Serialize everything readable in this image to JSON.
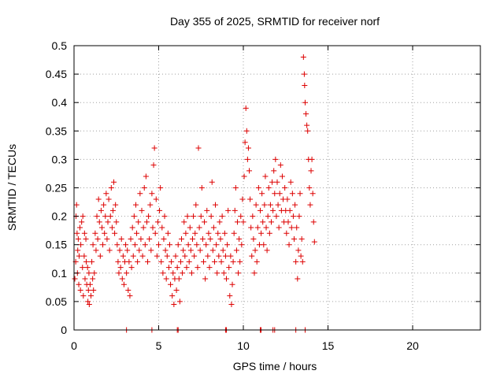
{
  "chart_data": {
    "type": "scatter",
    "title": "Day 355 of 2025, SRMTID for receiver norf",
    "xlabel": "GPS time / hours",
    "ylabel": "SRMTID / TECUs",
    "xlim": [
      0,
      24
    ],
    "ylim": [
      0,
      0.5
    ],
    "xticks": [
      0,
      5,
      10,
      15,
      20
    ],
    "xtick_labels": [
      "0",
      "5",
      "10",
      "15",
      "20"
    ],
    "yticks": [
      0,
      0.05,
      0.1,
      0.15,
      0.2,
      0.25,
      0.3,
      0.35,
      0.4,
      0.45,
      0.5
    ],
    "ytick_labels": [
      "0",
      "0.05",
      "0.1",
      "0.15",
      "0.2",
      "0.25",
      "0.3",
      "0.35",
      "0.4",
      "0.45",
      "0.5"
    ],
    "grid": true,
    "marker": "plus",
    "color": "#dd0000",
    "series": [
      {
        "points": [
          [
            0.05,
            0.09
          ],
          [
            0.1,
            0.12
          ],
          [
            0.12,
            0.2
          ],
          [
            0.15,
            0.22
          ],
          [
            0.18,
            0.17
          ],
          [
            0.2,
            0.1
          ],
          [
            0.22,
            0.14
          ],
          [
            0.25,
            0.16
          ],
          [
            0.28,
            0.08
          ],
          [
            0.3,
            0.13
          ],
          [
            0.35,
            0.18
          ],
          [
            0.38,
            0.07
          ],
          [
            0.4,
            0.15
          ],
          [
            0.45,
            0.19
          ],
          [
            0.5,
            0.11
          ],
          [
            0.52,
            0.2
          ],
          [
            0.55,
            0.06
          ],
          [
            0.6,
            0.13
          ],
          [
            0.62,
            0.17
          ],
          [
            0.65,
            0.09
          ],
          [
            0.7,
            0.16
          ],
          [
            0.72,
            0.12
          ],
          [
            0.75,
            0.08
          ],
          [
            0.8,
            0.11
          ],
          [
            0.82,
            0.05
          ],
          [
            0.85,
            0.07
          ],
          [
            0.88,
            0.1
          ],
          [
            0.9,
            0.045
          ],
          [
            0.95,
            0.08
          ],
          [
            1.0,
            0.06
          ],
          [
            1.05,
            0.12
          ],
          [
            1.1,
            0.09
          ],
          [
            1.12,
            0.15
          ],
          [
            1.15,
            0.07
          ],
          [
            1.2,
            0.1
          ],
          [
            1.25,
            0.17
          ],
          [
            1.3,
            0.14
          ],
          [
            1.35,
            0.2
          ],
          [
            1.4,
            0.16
          ],
          [
            1.45,
            0.23
          ],
          [
            1.5,
            0.19
          ],
          [
            1.55,
            0.13
          ],
          [
            1.6,
            0.21
          ],
          [
            1.65,
            0.18
          ],
          [
            1.7,
            0.15
          ],
          [
            1.75,
            0.22
          ],
          [
            1.8,
            0.17
          ],
          [
            1.85,
            0.2
          ],
          [
            1.9,
            0.24
          ],
          [
            1.95,
            0.16
          ],
          [
            2.0,
            0.19
          ],
          [
            2.05,
            0.23
          ],
          [
            2.1,
            0.14
          ],
          [
            2.15,
            0.2
          ],
          [
            2.2,
            0.25
          ],
          [
            2.25,
            0.18
          ],
          [
            2.3,
            0.21
          ],
          [
            2.35,
            0.26
          ],
          [
            2.4,
            0.17
          ],
          [
            2.45,
            0.22
          ],
          [
            2.5,
            0.19
          ],
          [
            2.55,
            0.15
          ],
          [
            2.6,
            0.12
          ],
          [
            2.65,
            0.1
          ],
          [
            2.7,
            0.14
          ],
          [
            2.75,
            0.11
          ],
          [
            2.8,
            0.16
          ],
          [
            2.85,
            0.09
          ],
          [
            2.9,
            0.13
          ],
          [
            2.95,
            0.08
          ],
          [
            3.0,
            0.12
          ],
          [
            3.05,
            0.15
          ],
          [
            3.1,
            0.1
          ],
          [
            3.15,
            0.14
          ],
          [
            3.2,
            0.07
          ],
          [
            3.25,
            0.12
          ],
          [
            3.3,
            0.06
          ],
          [
            3.35,
            0.16
          ],
          [
            3.4,
            0.11
          ],
          [
            3.45,
            0.18
          ],
          [
            3.5,
            0.13
          ],
          [
            3.55,
            0.2
          ],
          [
            3.6,
            0.15
          ],
          [
            3.65,
            0.22
          ],
          [
            3.7,
            0.17
          ],
          [
            3.75,
            0.12
          ],
          [
            3.8,
            0.19
          ],
          [
            3.85,
            0.14
          ],
          [
            3.9,
            0.24
          ],
          [
            3.95,
            0.16
          ],
          [
            4.0,
            0.21
          ],
          [
            4.05,
            0.13
          ],
          [
            4.1,
            0.18
          ],
          [
            4.15,
            0.25
          ],
          [
            4.2,
            0.15
          ],
          [
            4.25,
            0.27
          ],
          [
            4.3,
            0.19
          ],
          [
            4.35,
            0.12
          ],
          [
            4.4,
            0.2
          ],
          [
            4.45,
            0.16
          ],
          [
            4.5,
            0.22
          ],
          [
            4.55,
            0.14
          ],
          [
            4.6,
            0.24
          ],
          [
            4.65,
            0.18
          ],
          [
            4.7,
            0.29
          ],
          [
            4.75,
            0.32
          ],
          [
            4.8,
            0.17
          ],
          [
            4.85,
            0.23
          ],
          [
            4.9,
            0.13
          ],
          [
            4.95,
            0.19
          ],
          [
            5.0,
            0.15
          ],
          [
            5.05,
            0.21
          ],
          [
            5.1,
            0.25
          ],
          [
            5.15,
            0.12
          ],
          [
            5.2,
            0.18
          ],
          [
            5.25,
            0.1
          ],
          [
            5.3,
            0.16
          ],
          [
            5.35,
            0.2
          ],
          [
            5.4,
            0.14
          ],
          [
            5.45,
            0.09
          ],
          [
            5.5,
            0.13
          ],
          [
            5.55,
            0.17
          ],
          [
            5.6,
            0.11
          ],
          [
            5.65,
            0.15
          ],
          [
            5.7,
            0.08
          ],
          [
            5.75,
            0.12
          ],
          [
            5.8,
            0.06
          ],
          [
            5.85,
            0.1
          ],
          [
            5.9,
            0.045
          ],
          [
            5.95,
            0.09
          ],
          [
            6.0,
            0.13
          ],
          [
            6.05,
            0.07
          ],
          [
            6.1,
            0.11
          ],
          [
            6.15,
            0.15
          ],
          [
            6.2,
            0.09
          ],
          [
            6.25,
            0.05
          ],
          [
            6.3,
            0.12
          ],
          [
            6.35,
            0.16
          ],
          [
            6.4,
            0.1
          ],
          [
            6.45,
            0.14
          ],
          [
            6.5,
            0.19
          ],
          [
            6.55,
            0.13
          ],
          [
            6.6,
            0.17
          ],
          [
            6.65,
            0.11
          ],
          [
            6.7,
            0.2
          ],
          [
            6.75,
            0.15
          ],
          [
            6.8,
            0.12
          ],
          [
            6.85,
            0.18
          ],
          [
            6.9,
            0.14
          ],
          [
            6.95,
            0.1
          ],
          [
            7.0,
            0.16
          ],
          [
            7.05,
            0.2
          ],
          [
            7.1,
            0.13
          ],
          [
            7.15,
            0.17
          ],
          [
            7.2,
            0.22
          ],
          [
            7.25,
            0.15
          ],
          [
            7.3,
            0.11
          ],
          [
            7.35,
            0.32
          ],
          [
            7.4,
            0.18
          ],
          [
            7.45,
            0.14
          ],
          [
            7.5,
            0.2
          ],
          [
            7.55,
            0.25
          ],
          [
            7.6,
            0.16
          ],
          [
            7.65,
            0.12
          ],
          [
            7.7,
            0.19
          ],
          [
            7.75,
            0.09
          ],
          [
            7.8,
            0.15
          ],
          [
            7.85,
            0.21
          ],
          [
            7.9,
            0.13
          ],
          [
            7.95,
            0.17
          ],
          [
            8.0,
            0.11
          ],
          [
            8.05,
            0.16
          ],
          [
            8.1,
            0.2
          ],
          [
            8.15,
            0.26
          ],
          [
            8.2,
            0.14
          ],
          [
            8.25,
            0.18
          ],
          [
            8.3,
            0.12
          ],
          [
            8.35,
            0.22
          ],
          [
            8.4,
            0.15
          ],
          [
            8.45,
            0.1
          ],
          [
            8.5,
            0.17
          ],
          [
            8.55,
            0.13
          ],
          [
            8.6,
            0.19
          ],
          [
            8.65,
            0.16
          ],
          [
            8.7,
            0.12
          ],
          [
            8.75,
            0.2
          ],
          [
            8.8,
            0.14
          ],
          [
            8.85,
            0.1
          ],
          [
            8.9,
            0.17
          ],
          [
            8.95,
            0.13
          ],
          [
            9.0,
            0.09
          ],
          [
            9.05,
            0.15
          ],
          [
            9.1,
            0.21
          ],
          [
            9.15,
            0.11
          ],
          [
            9.2,
            0.06
          ],
          [
            9.25,
            0.13
          ],
          [
            9.3,
            0.045
          ],
          [
            9.35,
            0.08
          ],
          [
            9.4,
            0.12
          ],
          [
            9.45,
            0.17
          ],
          [
            9.5,
            0.21
          ],
          [
            9.55,
            0.25
          ],
          [
            9.6,
            0.14
          ],
          [
            9.65,
            0.19
          ],
          [
            9.7,
            0.1
          ],
          [
            9.75,
            0.16
          ],
          [
            9.8,
            0.12
          ],
          [
            9.85,
            0.2
          ],
          [
            9.9,
            0.15
          ],
          [
            9.95,
            0.23
          ],
          [
            10.0,
            0.19
          ],
          [
            10.05,
            0.27
          ],
          [
            10.1,
            0.33
          ],
          [
            10.15,
            0.39
          ],
          [
            10.2,
            0.35
          ],
          [
            10.25,
            0.3
          ],
          [
            10.3,
            0.32
          ],
          [
            10.35,
            0.28
          ],
          [
            10.4,
            0.23
          ],
          [
            10.45,
            0.18
          ],
          [
            10.5,
            0.13
          ],
          [
            10.55,
            0.2
          ],
          [
            10.6,
            0.16
          ],
          [
            10.65,
            0.1
          ],
          [
            10.7,
            0.14
          ],
          [
            10.75,
            0.22
          ],
          [
            10.8,
            0.12
          ],
          [
            10.85,
            0.18
          ],
          [
            10.9,
            0.25
          ],
          [
            10.95,
            0.15
          ],
          [
            11.0,
            0.21
          ],
          [
            11.05,
            0.17
          ],
          [
            11.1,
            0.24
          ],
          [
            11.15,
            0.19
          ],
          [
            11.2,
            0.15
          ],
          [
            11.25,
            0.22
          ],
          [
            11.3,
            0.27
          ],
          [
            11.35,
            0.18
          ],
          [
            11.4,
            0.14
          ],
          [
            11.45,
            0.2
          ],
          [
            11.5,
            0.25
          ],
          [
            11.55,
            0.17
          ],
          [
            11.6,
            0.22
          ],
          [
            11.65,
            0.19
          ],
          [
            11.7,
            0.26
          ],
          [
            11.75,
            0.21
          ],
          [
            11.8,
            0.28
          ],
          [
            11.85,
            0.24
          ],
          [
            11.9,
            0.3
          ],
          [
            11.95,
            0.2
          ],
          [
            12.0,
            0.26
          ],
          [
            12.05,
            0.22
          ],
          [
            12.1,
            0.18
          ],
          [
            12.15,
            0.24
          ],
          [
            12.2,
            0.29
          ],
          [
            12.25,
            0.21
          ],
          [
            12.3,
            0.27
          ],
          [
            12.35,
            0.23
          ],
          [
            12.4,
            0.19
          ],
          [
            12.45,
            0.25
          ],
          [
            12.5,
            0.21
          ],
          [
            12.55,
            0.17
          ],
          [
            12.6,
            0.23
          ],
          [
            12.65,
            0.19
          ],
          [
            12.7,
            0.15
          ],
          [
            12.75,
            0.21
          ],
          [
            12.8,
            0.26
          ],
          [
            12.85,
            0.18
          ],
          [
            12.9,
            0.24
          ],
          [
            12.95,
            0.2
          ],
          [
            13.0,
            0.16
          ],
          [
            13.05,
            0.22
          ],
          [
            13.1,
            0.12
          ],
          [
            13.15,
            0.18
          ],
          [
            13.2,
            0.09
          ],
          [
            13.25,
            0.14
          ],
          [
            13.3,
            0.2
          ],
          [
            13.35,
            0.24
          ],
          [
            13.4,
            0.13
          ],
          [
            13.45,
            0.16
          ],
          [
            13.5,
            0.12
          ],
          [
            13.55,
            0.48
          ],
          [
            13.6,
            0.45
          ],
          [
            13.62,
            0.43
          ],
          [
            13.65,
            0.4
          ],
          [
            13.7,
            0.38
          ],
          [
            13.75,
            0.36
          ],
          [
            13.8,
            0.35
          ],
          [
            13.85,
            0.3
          ],
          [
            13.9,
            0.25
          ],
          [
            13.95,
            0.22
          ],
          [
            14.0,
            0.28
          ],
          [
            14.05,
            0.3
          ],
          [
            14.1,
            0.24
          ],
          [
            14.15,
            0.19
          ],
          [
            14.2,
            0.155
          ],
          [
            3.1,
            0.0
          ],
          [
            4.6,
            0.0
          ],
          [
            6.1,
            0.0
          ],
          [
            6.15,
            0.0
          ],
          [
            8.95,
            0.0
          ],
          [
            9.0,
            0.0
          ],
          [
            11.0,
            0.0
          ],
          [
            11.05,
            0.0
          ],
          [
            11.75,
            0.0
          ],
          [
            11.85,
            0.0
          ],
          [
            13.1,
            0.0
          ],
          [
            13.65,
            0.0
          ]
        ]
      }
    ]
  }
}
